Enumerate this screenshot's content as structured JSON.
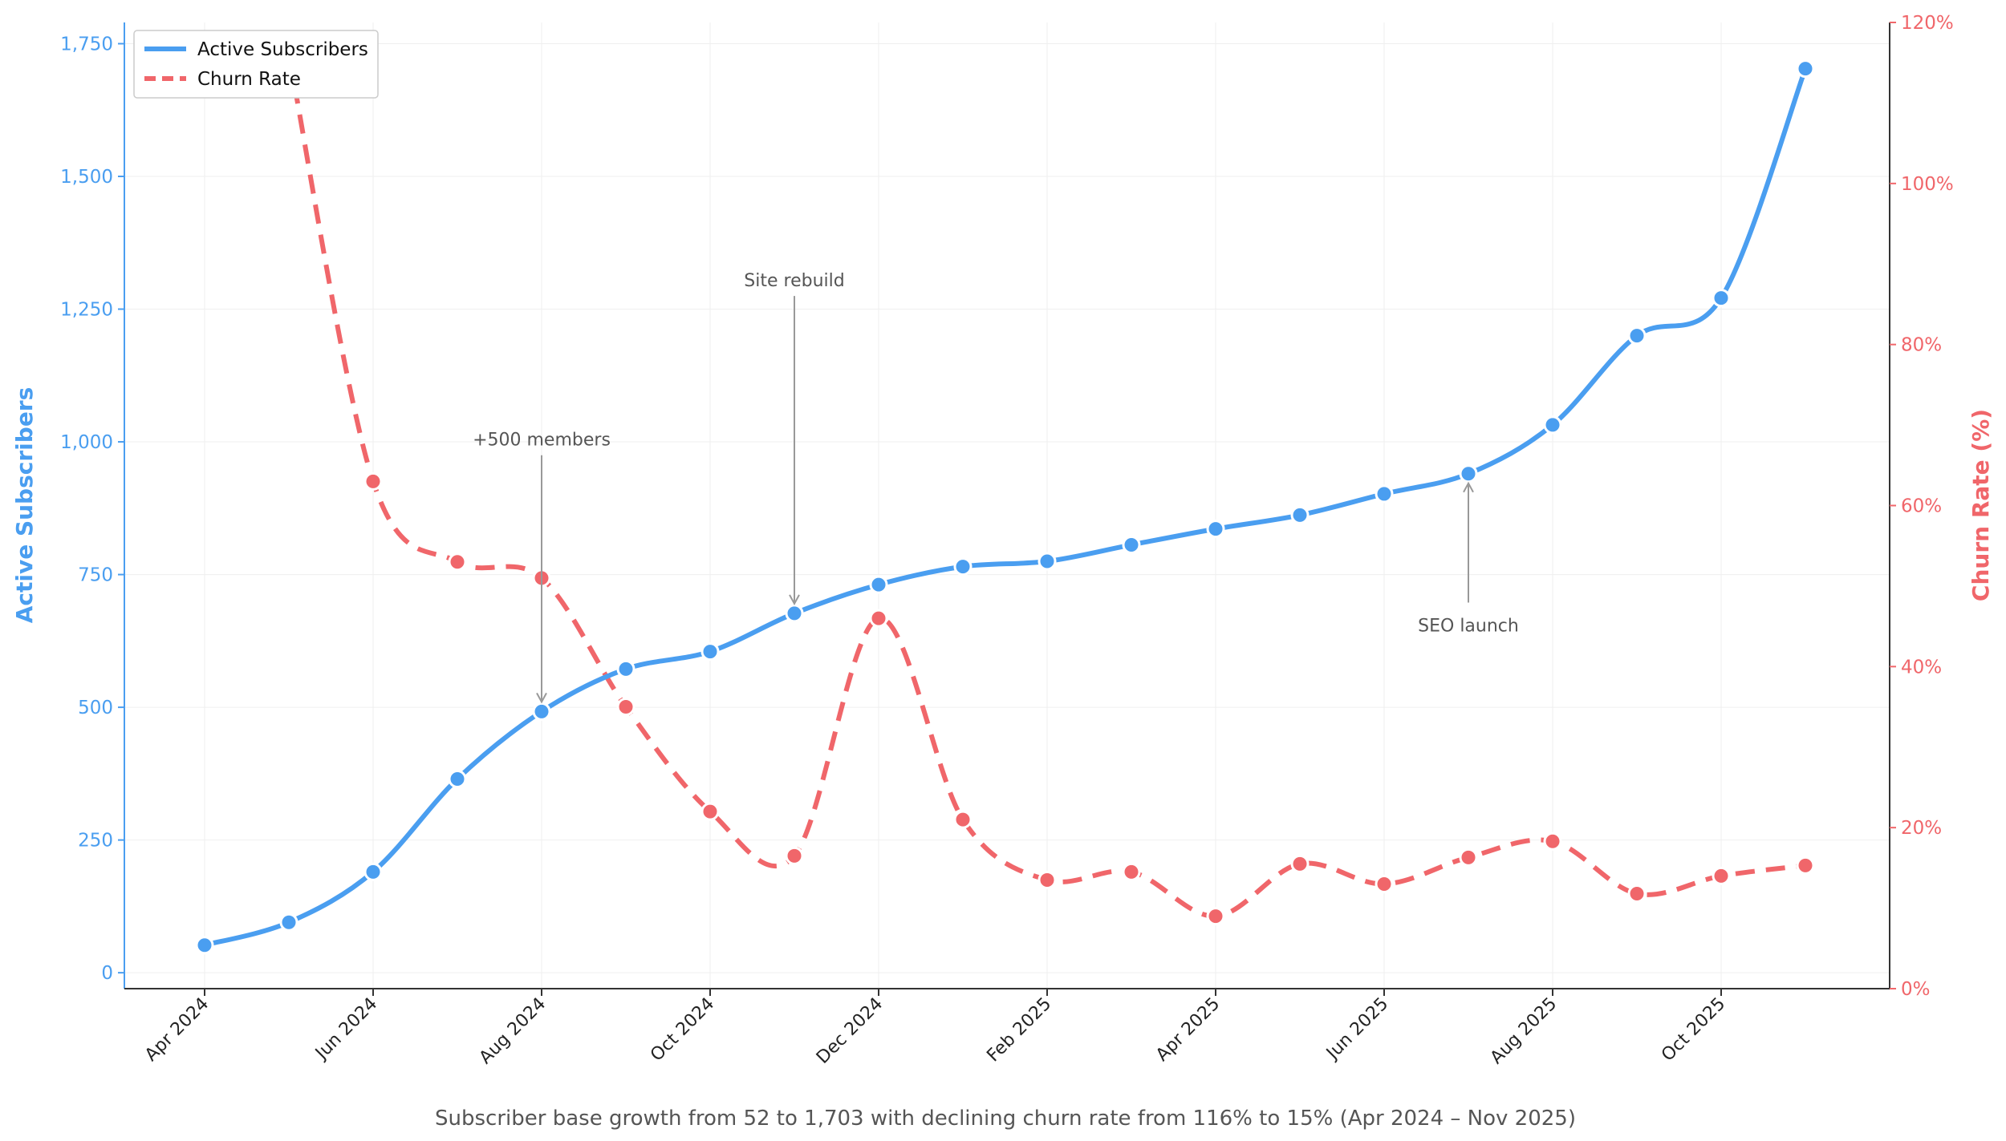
{
  "chart_data": {
    "type": "line",
    "caption": "Subscriber base growth from 52 to 1,703 with declining churn rate from 116% to 15% (Apr 2024 – Nov 2025)",
    "x": [
      "2024-04",
      "2024-05",
      "2024-06",
      "2024-07",
      "2024-08",
      "2024-09",
      "2024-10",
      "2024-11",
      "2024-12",
      "2025-01",
      "2025-02",
      "2025-03",
      "2025-04",
      "2025-05",
      "2025-06",
      "2025-07",
      "2025-08",
      "2025-09",
      "2025-10",
      "2025-11"
    ],
    "x_tick_labels": [
      "Apr 2024",
      "Jun 2024",
      "Aug 2024",
      "Oct 2024",
      "Dec 2024",
      "Feb 2025",
      "Apr 2025",
      "Jun 2025",
      "Aug 2025",
      "Oct 2025"
    ],
    "x_tick_dates": [
      "2024-04",
      "2024-06",
      "2024-08",
      "2024-10",
      "2024-12",
      "2025-02",
      "2025-04",
      "2025-06",
      "2025-08",
      "2025-10"
    ],
    "y_left": {
      "label": "Active Subscribers",
      "ylim": [
        -30,
        1790
      ],
      "ticks": [
        0,
        250,
        500,
        750,
        1000,
        1250,
        1500,
        1750
      ],
      "tick_labels": [
        "0",
        "250",
        "500",
        "750",
        "1,000",
        "1,250",
        "1,500",
        "1,750"
      ]
    },
    "y_right": {
      "label": "Churn Rate (%)",
      "ylim": [
        0,
        120
      ],
      "ticks": [
        0,
        20,
        40,
        60,
        80,
        100,
        120
      ],
      "tick_labels": [
        "0%",
        "20%",
        "40%",
        "60%",
        "80%",
        "100%",
        "120%"
      ]
    },
    "series": [
      {
        "name": "Active Subscribers",
        "axis": "left",
        "color": "#4a9ef0",
        "style": "solid",
        "points": [
          {
            "x": "2024-04",
            "y": 52
          },
          {
            "x": "2024-05",
            "y": 95
          },
          {
            "x": "2024-06",
            "y": 190
          },
          {
            "x": "2024-07",
            "y": 365
          },
          {
            "x": "2024-08",
            "y": 492
          },
          {
            "x": "2024-09",
            "y": 572
          },
          {
            "x": "2024-10",
            "y": 605
          },
          {
            "x": "2024-11",
            "y": 677
          },
          {
            "x": "2024-12",
            "y": 731
          },
          {
            "x": "2025-01",
            "y": 765
          },
          {
            "x": "2025-02",
            "y": 775
          },
          {
            "x": "2025-03",
            "y": 806
          },
          {
            "x": "2025-04",
            "y": 836
          },
          {
            "x": "2025-05",
            "y": 862
          },
          {
            "x": "2025-06",
            "y": 902
          },
          {
            "x": "2025-07",
            "y": 940
          },
          {
            "x": "2025-08",
            "y": 1032
          },
          {
            "x": "2025-09",
            "y": 1200
          },
          {
            "x": "2025-10",
            "y": 1271
          },
          {
            "x": "2025-11",
            "y": 1703
          }
        ]
      },
      {
        "name": "Churn Rate",
        "axis": "right",
        "color": "#f0666a",
        "style": "dashed",
        "points": [
          {
            "x": "2024-05",
            "y": 116
          },
          {
            "x": "2024-06",
            "y": 63
          },
          {
            "x": "2024-07",
            "y": 53
          },
          {
            "x": "2024-08",
            "y": 51
          },
          {
            "x": "2024-09",
            "y": 35
          },
          {
            "x": "2024-10",
            "y": 22
          },
          {
            "x": "2024-11",
            "y": 16.5
          },
          {
            "x": "2024-12",
            "y": 46
          },
          {
            "x": "2025-01",
            "y": 21
          },
          {
            "x": "2025-02",
            "y": 13.5
          },
          {
            "x": "2025-03",
            "y": 14.5
          },
          {
            "x": "2025-04",
            "y": 9
          },
          {
            "x": "2025-05",
            "y": 15.5
          },
          {
            "x": "2025-06",
            "y": 13
          },
          {
            "x": "2025-07",
            "y": 16.3
          },
          {
            "x": "2025-08",
            "y": 18.3
          },
          {
            "x": "2025-09",
            "y": 11.8
          },
          {
            "x": "2025-10",
            "y": 14
          },
          {
            "x": "2025-11",
            "y": 15.3
          }
        ]
      }
    ],
    "annotations": [
      {
        "text": "+500 members",
        "x": "2024-08",
        "y": 492,
        "text_y": 1005
      },
      {
        "text": "Site rebuild",
        "x": "2024-11",
        "y": 677,
        "text_y": 1305
      },
      {
        "text": "SEO launch",
        "x": "2025-07",
        "y": 940,
        "text_y": 655
      }
    ],
    "legend": {
      "placement": "top-left",
      "entries": [
        "Active Subscribers",
        "Churn Rate"
      ]
    },
    "grid": true
  }
}
